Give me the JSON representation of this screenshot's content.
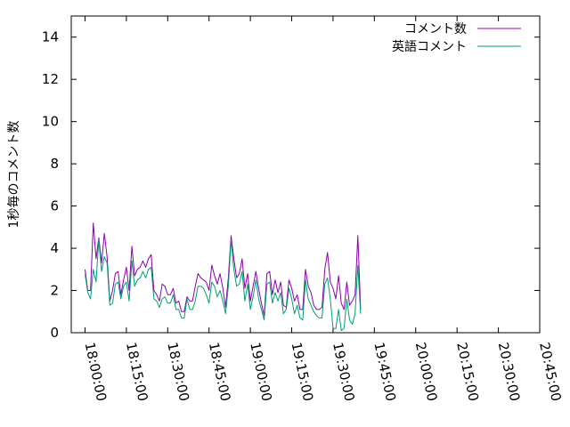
{
  "chart_data": {
    "type": "line",
    "title": "",
    "xlabel": "",
    "ylabel": "1秒毎のコメント数",
    "ylim": [
      0,
      15
    ],
    "yticks": [
      0,
      2,
      4,
      6,
      8,
      10,
      12,
      14
    ],
    "xlim": [
      "17:55:00",
      "20:45:00"
    ],
    "xticks": [
      "18:00:00",
      "18:15:00",
      "18:30:00",
      "18:45:00",
      "19:00:00",
      "19:15:00",
      "19:30:00",
      "19:45:00",
      "20:00:00",
      "20:15:00",
      "20:30:00",
      "20:45:00"
    ],
    "grid": false,
    "legend_position": "top-right",
    "x_start": "18:00:00",
    "x_step_seconds": 60,
    "series": [
      {
        "name": "コメント数",
        "color": "#8b00b0",
        "values": [
          3.0,
          2.0,
          2.0,
          5.2,
          3.5,
          4.5,
          3.3,
          4.7,
          3.6,
          1.5,
          2.0,
          2.8,
          2.9,
          1.8,
          2.5,
          3.1,
          2.0,
          4.1,
          2.7,
          3.0,
          3.1,
          3.4,
          3.1,
          3.5,
          3.7,
          2.0,
          1.8,
          1.5,
          2.3,
          2.2,
          1.8,
          1.8,
          2.1,
          1.4,
          1.5,
          1.0,
          1.0,
          1.7,
          1.5,
          1.5,
          2.2,
          2.8,
          2.6,
          2.5,
          2.4,
          2.0,
          3.2,
          2.7,
          2.3,
          2.8,
          2.1,
          1.2,
          2.6,
          4.6,
          3.5,
          2.6,
          2.8,
          3.5,
          2.1,
          2.8,
          1.5,
          2.2,
          2.9,
          2.1,
          1.4,
          0.8,
          2.8,
          2.9,
          1.8,
          2.5,
          1.9,
          2.4,
          1.3,
          1.2,
          2.5,
          2.1,
          1.5,
          1.8,
          1.1,
          1.1,
          3.0,
          2.2,
          1.9,
          1.3,
          1.1,
          1.1,
          1.2,
          3.0,
          3.8,
          2.4,
          2.1,
          1.6,
          2.7,
          1.4,
          1.1,
          2.4,
          1.3,
          1.5,
          1.8,
          4.6,
          1.1
        ]
      },
      {
        "name": "英語コメント",
        "color": "#009e73",
        "values": [
          2.8,
          1.9,
          1.6,
          3.0,
          2.4,
          4.4,
          2.9,
          3.6,
          3.3,
          1.3,
          1.4,
          2.3,
          2.4,
          1.6,
          2.2,
          2.4,
          1.5,
          3.4,
          2.2,
          2.5,
          2.6,
          2.9,
          2.6,
          3.0,
          3.1,
          1.6,
          1.5,
          1.2,
          1.6,
          1.7,
          1.4,
          1.4,
          1.8,
          1.1,
          1.1,
          0.7,
          0.7,
          1.6,
          1.1,
          1.1,
          1.5,
          2.2,
          2.2,
          2.1,
          1.8,
          1.4,
          2.4,
          2.2,
          1.7,
          2.0,
          1.5,
          0.9,
          2.2,
          4.4,
          3.0,
          2.2,
          2.3,
          2.9,
          1.5,
          2.3,
          1.1,
          1.7,
          2.5,
          1.6,
          1.1,
          0.6,
          2.3,
          2.4,
          1.4,
          1.9,
          1.5,
          1.9,
          0.9,
          1.1,
          2.1,
          1.6,
          0.9,
          1.3,
          0.7,
          0.6,
          2.5,
          1.6,
          1.3,
          1.0,
          0.8,
          0.7,
          0.7,
          2.3,
          2.6,
          1.6,
          0.2,
          0.2,
          1.1,
          0.1,
          0.2,
          1.6,
          0.6,
          0.4,
          0.9,
          3.2,
          0.9
        ]
      }
    ]
  }
}
